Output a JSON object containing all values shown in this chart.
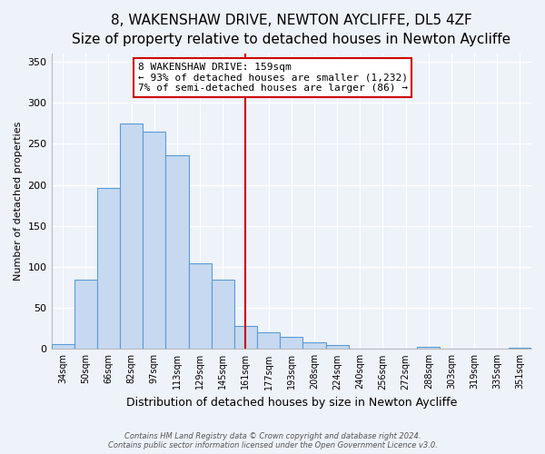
{
  "title": "8, WAKENSHAW DRIVE, NEWTON AYCLIFFE, DL5 4ZF",
  "subtitle": "Size of property relative to detached houses in Newton Aycliffe",
  "xlabel": "Distribution of detached houses by size in Newton Aycliffe",
  "ylabel": "Number of detached properties",
  "bin_labels": [
    "34sqm",
    "50sqm",
    "66sqm",
    "82sqm",
    "97sqm",
    "113sqm",
    "129sqm",
    "145sqm",
    "161sqm",
    "177sqm",
    "193sqm",
    "208sqm",
    "224sqm",
    "240sqm",
    "256sqm",
    "272sqm",
    "288sqm",
    "303sqm",
    "319sqm",
    "335sqm",
    "351sqm"
  ],
  "bar_heights": [
    6,
    84,
    196,
    275,
    265,
    236,
    104,
    84,
    28,
    20,
    15,
    8,
    5,
    0,
    0,
    0,
    2,
    0,
    0,
    0,
    1
  ],
  "bar_color": "#c6d9f0",
  "bar_edge_color": "#5b9bd5",
  "vline_x_index": 8,
  "vline_color": "#cc0000",
  "annotation_title": "8 WAKENSHAW DRIVE: 159sqm",
  "annotation_line1": "← 93% of detached houses are smaller (1,232)",
  "annotation_line2": "7% of semi-detached houses are larger (86) →",
  "annotation_box_color": "#cc0000",
  "ylim": [
    0,
    360
  ],
  "yticks": [
    0,
    50,
    100,
    150,
    200,
    250,
    300,
    350
  ],
  "footer1": "Contains HM Land Registry data © Crown copyright and database right 2024.",
  "footer2": "Contains public sector information licensed under the Open Government Licence v3.0.",
  "bg_color": "#eef2f9",
  "grid_color": "#ffffff",
  "title_fontsize": 11,
  "subtitle_fontsize": 9.5,
  "xlabel_fontsize": 9,
  "ylabel_fontsize": 8,
  "xtick_fontsize": 7,
  "ytick_fontsize": 8,
  "annotation_fontsize": 8,
  "footer_fontsize": 6
}
